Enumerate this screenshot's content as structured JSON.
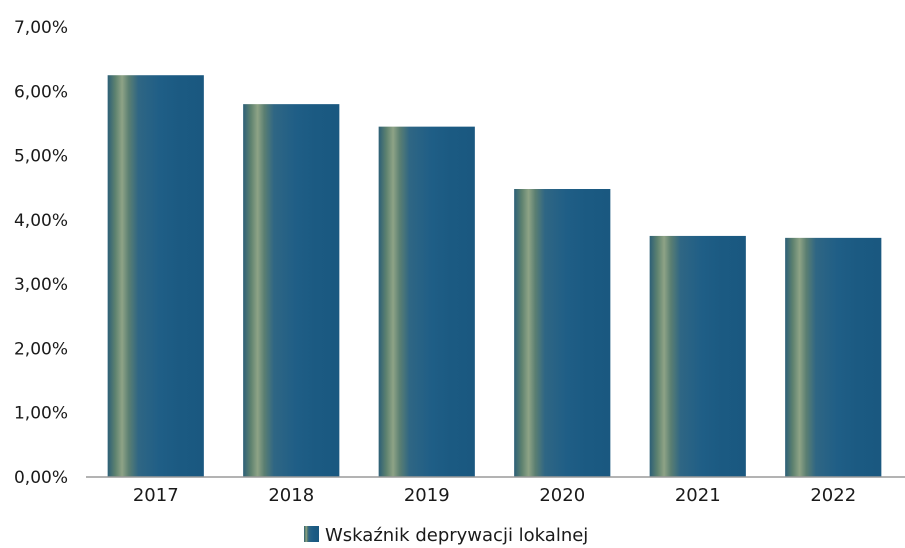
{
  "chart_data": {
    "type": "bar",
    "categories": [
      "2017",
      "2018",
      "2019",
      "2020",
      "2021",
      "2022"
    ],
    "series": [
      {
        "name": "Wskaźnik deprywacji lokalnej",
        "values": [
          6.25,
          5.8,
          5.45,
          4.48,
          3.75,
          3.72
        ]
      }
    ],
    "y_tick_labels": [
      "0,00%",
      "1,00%",
      "2,00%",
      "3,00%",
      "4,00%",
      "5,00%",
      "6,00%",
      "7,00%"
    ],
    "ylim": [
      0,
      7
    ],
    "y_unit": "%",
    "grid": false,
    "legend_position": "bottom-center",
    "bar_color": "#1f5f86",
    "bar_highlight_color": "#7a9680"
  }
}
